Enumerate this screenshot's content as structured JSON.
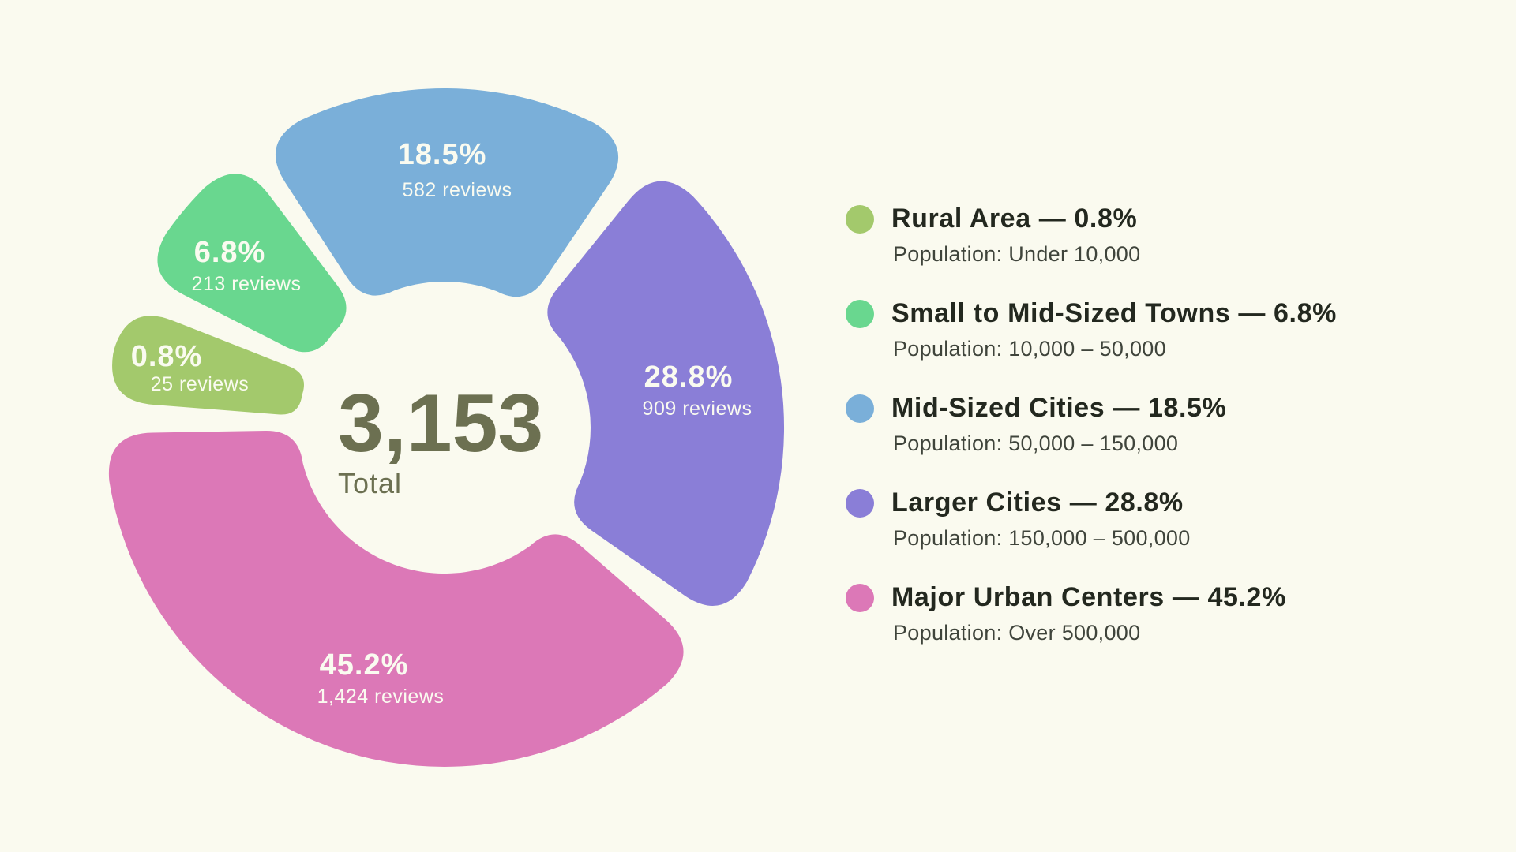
{
  "colors": {
    "background": "#FAFAEF",
    "center_text": "#6C7051",
    "segment_label_text": "#FAFBF0",
    "legend_title_text": "#23281F",
    "legend_sub_text": "#3F443B"
  },
  "chart_data": {
    "type": "pie",
    "style": "donut-blob",
    "total_value": "3,153",
    "total_label": "Total",
    "legend_position": "right",
    "grid": false,
    "segments": [
      {
        "label": "Rural Area",
        "pct": 0.8,
        "pct_label": "0.8%",
        "reviews": 25,
        "reviews_label": "25 reviews",
        "population": "Population: Under 10,000",
        "color": "#A3C96C"
      },
      {
        "label": "Small to Mid-Sized Towns",
        "pct": 6.8,
        "pct_label": "6.8%",
        "reviews": 213,
        "reviews_label": "213 reviews",
        "population": "Population: 10,000 – 50,000",
        "color": "#69D78F"
      },
      {
        "label": "Mid-Sized Cities",
        "pct": 18.5,
        "pct_label": "18.5%",
        "reviews": 582,
        "reviews_label": "582 reviews",
        "population": "Population: 50,000 – 150,000",
        "color": "#7AAFD9"
      },
      {
        "label": "Larger Cities",
        "pct": 28.8,
        "pct_label": "28.8%",
        "reviews": 909,
        "reviews_label": "909 reviews",
        "population": "Population: 150,000 – 500,000",
        "color": "#8A7ED7"
      },
      {
        "label": "Major Urban Centers",
        "pct": 45.2,
        "pct_label": "45.2%",
        "reviews": 1424,
        "reviews_label": "1,424 reviews",
        "population": "Population: Over 500,000",
        "color": "#DC78B7"
      }
    ]
  }
}
